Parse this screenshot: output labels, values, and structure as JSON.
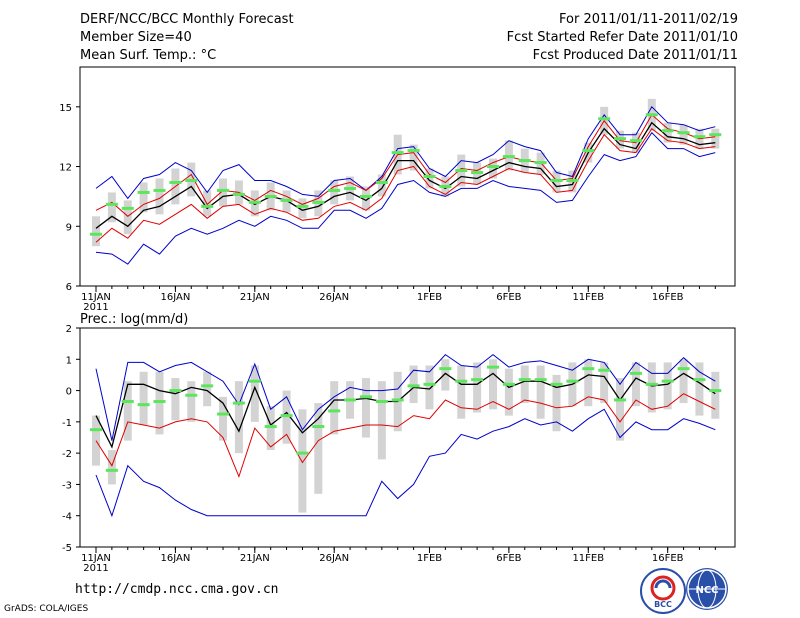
{
  "header": {
    "title": "DERF/NCC/BCC Monthly Forecast",
    "member_size": "Member Size=40",
    "variable": "Mean Surf. Temp.: °C",
    "period": "For 2011/01/11-2011/02/19",
    "start_date": "Fcst Started Refer Date 2011/01/10",
    "produced_date": "Fcst Produced Date 2011/01/11"
  },
  "footer": {
    "url": "http://cmdp.ncc.cma.gov.cn",
    "grads": "GrADS: COLA/IGES",
    "logo_left": "BCC",
    "logo_right": "NCC"
  },
  "colors": {
    "box": "#d3d3d3",
    "median": "#5ce65c",
    "mean": "#000000",
    "lower": "#e00000",
    "envelope": "#0000cc",
    "frame": "#000000"
  },
  "chart_data": [
    {
      "type": "box-ensemble",
      "title": "Mean Surf. Temp.: °C",
      "ylim": [
        6,
        17
      ],
      "yticks": [
        6,
        9,
        12,
        15
      ],
      "xticks": [
        {
          "day": 0,
          "label": "11JAN",
          "sub": "2011"
        },
        {
          "day": 5,
          "label": "16JAN"
        },
        {
          "day": 10,
          "label": "21JAN"
        },
        {
          "day": 15,
          "label": "26JAN"
        },
        {
          "day": 21,
          "label": "1FEB"
        },
        {
          "day": 26,
          "label": "6FEB"
        },
        {
          "day": 31,
          "label": "11FEB"
        },
        {
          "day": 36,
          "label": "16FEB"
        }
      ],
      "median": [
        8.6,
        10.1,
        9.9,
        10.7,
        10.8,
        11.2,
        11.3,
        10.0,
        10.8,
        10.6,
        10.2,
        10.5,
        10.3,
        10.0,
        10.2,
        10.8,
        10.9,
        10.5,
        11.2,
        12.7,
        12.8,
        11.5,
        11.0,
        11.8,
        11.7,
        12.0,
        12.5,
        12.3,
        12.2,
        11.3,
        11.3,
        12.8,
        14.4,
        13.4,
        13.3,
        14.6,
        13.8,
        13.7,
        13.5,
        13.6
      ],
      "box_low": [
        8.0,
        9.2,
        8.6,
        9.7,
        9.6,
        10.1,
        10.5,
        9.5,
        10.0,
        10.1,
        9.5,
        9.8,
        9.7,
        9.4,
        9.5,
        10.1,
        10.3,
        9.8,
        10.5,
        11.6,
        11.8,
        10.9,
        10.5,
        11.0,
        11.1,
        11.4,
        11.8,
        11.7,
        11.6,
        10.7,
        10.7,
        12.2,
        13.6,
        12.9,
        12.7,
        13.8,
        13.2,
        13.1,
        12.9,
        12.9
      ],
      "box_high": [
        9.5,
        10.7,
        10.3,
        11.2,
        11.4,
        11.9,
        12.2,
        10.8,
        11.4,
        11.3,
        10.8,
        11.2,
        10.8,
        10.4,
        10.8,
        11.3,
        11.5,
        11.0,
        11.6,
        13.6,
        13.1,
        11.9,
        11.5,
        12.6,
        12.2,
        12.4,
        13.3,
        12.9,
        12.7,
        11.8,
        11.8,
        13.2,
        15.0,
        13.8,
        13.7,
        15.4,
        14.2,
        14.1,
        13.9,
        13.9
      ],
      "mean": [
        8.9,
        9.5,
        9.0,
        9.8,
        10.0,
        10.5,
        11.0,
        9.9,
        10.5,
        10.6,
        10.1,
        10.5,
        10.3,
        9.8,
        10.0,
        10.5,
        10.7,
        10.3,
        10.9,
        12.3,
        12.3,
        11.3,
        10.9,
        11.5,
        11.4,
        11.8,
        12.2,
        12.0,
        11.9,
        11.0,
        11.1,
        12.7,
        13.9,
        13.1,
        12.9,
        14.2,
        13.5,
        13.4,
        13.1,
        13.2
      ],
      "lower": [
        8.2,
        8.9,
        8.4,
        9.3,
        9.1,
        9.6,
        10.1,
        9.4,
        10.0,
        10.1,
        9.6,
        9.9,
        9.7,
        9.3,
        9.4,
        10.0,
        10.2,
        9.8,
        10.4,
        11.8,
        12.0,
        11.0,
        10.6,
        11.2,
        11.1,
        11.5,
        11.9,
        11.7,
        11.6,
        10.7,
        10.8,
        12.3,
        13.6,
        12.8,
        12.7,
        13.9,
        13.3,
        13.2,
        12.9,
        13.0
      ],
      "upper": [
        9.8,
        10.2,
        9.5,
        10.1,
        10.4,
        11.0,
        11.6,
        10.1,
        10.8,
        10.7,
        10.3,
        10.8,
        10.5,
        10.1,
        10.4,
        11.0,
        11.2,
        10.8,
        11.4,
        12.6,
        12.7,
        11.6,
        11.2,
        11.9,
        11.8,
        12.2,
        12.5,
        12.3,
        12.2,
        11.3,
        11.4,
        13.0,
        14.3,
        13.3,
        13.2,
        14.6,
        13.9,
        13.7,
        13.4,
        13.5
      ],
      "env_max": [
        10.9,
        11.5,
        10.4,
        11.4,
        11.6,
        12.2,
        11.8,
        10.7,
        11.8,
        12.1,
        11.3,
        11.3,
        11.0,
        10.6,
        10.5,
        11.3,
        11.4,
        10.8,
        11.5,
        12.9,
        13.0,
        11.9,
        11.5,
        12.3,
        12.2,
        12.6,
        13.3,
        13.0,
        12.8,
        11.7,
        11.5,
        13.4,
        14.6,
        13.6,
        13.6,
        15.0,
        14.2,
        14.1,
        13.8,
        14.0
      ],
      "env_min": [
        7.7,
        7.6,
        7.1,
        8.1,
        7.6,
        8.5,
        8.9,
        8.6,
        8.9,
        9.3,
        9.0,
        9.5,
        9.3,
        8.9,
        8.9,
        9.8,
        9.8,
        9.4,
        9.9,
        11.1,
        11.3,
        10.7,
        10.5,
        10.9,
        10.9,
        11.3,
        11.0,
        10.9,
        10.8,
        10.2,
        10.3,
        11.5,
        12.6,
        12.3,
        12.5,
        13.7,
        12.9,
        12.9,
        12.5,
        12.7
      ]
    },
    {
      "type": "box-ensemble",
      "title": "Prec.: log(mm/d)",
      "ylim": [
        -5,
        2
      ],
      "yticks": [
        -5,
        -4,
        -3,
        -2,
        -1,
        0,
        1,
        2
      ],
      "xticks": [
        {
          "day": 0,
          "label": "11JAN",
          "sub": "2011"
        },
        {
          "day": 5,
          "label": "16JAN"
        },
        {
          "day": 10,
          "label": "21JAN"
        },
        {
          "day": 15,
          "label": "26JAN"
        },
        {
          "day": 21,
          "label": "1FEB"
        },
        {
          "day": 26,
          "label": "6FEB"
        },
        {
          "day": 31,
          "label": "11FEB"
        },
        {
          "day": 36,
          "label": "16FEB"
        }
      ],
      "median": [
        -1.25,
        -2.55,
        -0.35,
        -0.45,
        -0.35,
        0.0,
        -0.15,
        0.15,
        -0.75,
        -0.4,
        0.3,
        -1.15,
        -0.8,
        -2.0,
        -1.15,
        -0.65,
        -0.3,
        -0.2,
        -0.35,
        -0.3,
        0.15,
        0.2,
        0.7,
        0.3,
        0.35,
        0.75,
        0.2,
        0.35,
        0.35,
        0.2,
        0.3,
        0.7,
        0.65,
        -0.3,
        0.55,
        0.2,
        0.3,
        0.7,
        0.35,
        0.0
      ],
      "box_low": [
        -2.4,
        -3.0,
        -1.6,
        -1.1,
        -1.4,
        -0.95,
        -1.0,
        -0.5,
        -1.6,
        -2.0,
        -1.0,
        -1.9,
        -1.7,
        -3.9,
        -3.3,
        -1.4,
        -0.9,
        -1.5,
        -2.2,
        -1.3,
        -0.4,
        -0.6,
        0.0,
        -0.9,
        -0.7,
        -0.6,
        -0.8,
        -0.4,
        -0.9,
        -1.3,
        -0.5,
        -0.5,
        -0.4,
        -1.6,
        -0.5,
        -0.7,
        -0.6,
        -0.4,
        -0.8,
        -0.9
      ],
      "box_high": [
        -0.8,
        -1.9,
        0.3,
        0.6,
        0.6,
        0.4,
        0.3,
        0.6,
        -0.2,
        0.3,
        0.8,
        -0.5,
        0.0,
        -0.6,
        -0.4,
        0.3,
        0.3,
        0.4,
        0.3,
        0.6,
        0.8,
        0.8,
        1.0,
        0.8,
        0.9,
        1.0,
        0.7,
        0.8,
        0.8,
        0.5,
        0.9,
        1.0,
        0.9,
        0.4,
        0.9,
        0.9,
        0.9,
        1.0,
        0.9,
        0.6
      ],
      "mean": [
        -0.8,
        -1.8,
        0.2,
        0.2,
        0.0,
        -0.1,
        0.1,
        0.0,
        -0.4,
        -1.3,
        0.1,
        -1.1,
        -0.7,
        -1.35,
        -0.9,
        -0.3,
        -0.3,
        -0.25,
        -0.35,
        -0.35,
        0.1,
        0.05,
        0.55,
        0.2,
        0.2,
        0.55,
        0.1,
        0.3,
        0.3,
        0.1,
        0.2,
        0.5,
        0.45,
        -0.3,
        0.4,
        0.15,
        0.2,
        0.55,
        0.25,
        -0.1
      ],
      "lower": [
        -1.6,
        -2.4,
        -1.0,
        -1.1,
        -1.2,
        -1.0,
        -0.9,
        -1.0,
        -1.5,
        -2.75,
        -1.2,
        -1.8,
        -1.4,
        -2.3,
        -1.6,
        -1.3,
        -1.2,
        -1.1,
        -1.1,
        -1.15,
        -0.8,
        -0.9,
        -0.3,
        -0.55,
        -0.6,
        -0.35,
        -0.6,
        -0.3,
        -0.4,
        -0.55,
        -0.5,
        -0.2,
        -0.3,
        -1.0,
        -0.3,
        -0.6,
        -0.5,
        -0.1,
        -0.35,
        -0.6
      ],
      "env_max": [
        0.7,
        -1.6,
        0.9,
        0.9,
        0.6,
        0.8,
        0.9,
        0.6,
        0.3,
        -0.45,
        0.85,
        -0.6,
        -0.2,
        -1.25,
        -0.6,
        -0.2,
        0.1,
        0.0,
        0.0,
        0.05,
        0.65,
        0.6,
        1.15,
        0.8,
        0.75,
        1.15,
        0.75,
        0.9,
        0.95,
        0.8,
        0.65,
        1.0,
        0.9,
        0.2,
        0.9,
        0.55,
        0.55,
        1.05,
        0.6,
        0.3
      ],
      "env_min": [
        -2.7,
        -4.0,
        -2.4,
        -2.9,
        -3.1,
        -3.5,
        -3.8,
        -4.0,
        -4.0,
        -4.0,
        -4.0,
        -4.0,
        -4.0,
        -4.0,
        -4.0,
        -4.0,
        -4.0,
        -4.0,
        -2.9,
        -3.45,
        -3.0,
        -2.1,
        -2.0,
        -1.4,
        -1.55,
        -1.3,
        -1.15,
        -0.9,
        -1.1,
        -1.0,
        -1.3,
        -0.9,
        -0.6,
        -1.5,
        -1.0,
        -1.25,
        -1.25,
        -0.9,
        -1.05,
        -1.25
      ]
    }
  ]
}
